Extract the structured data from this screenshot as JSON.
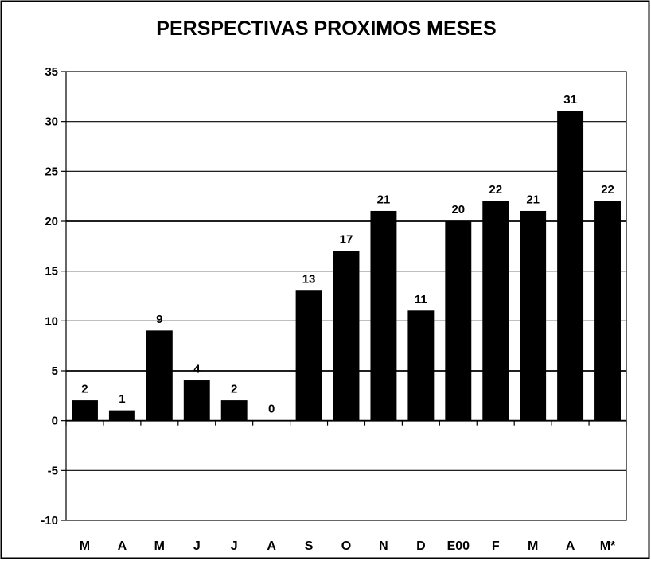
{
  "chart_data": {
    "type": "bar",
    "title": "PERSPECTIVAS PROXIMOS MESES",
    "xlabel": "",
    "ylabel": "",
    "categories": [
      "M",
      "A",
      "M",
      "J",
      "J",
      "A",
      "S",
      "O",
      "N",
      "D",
      "E00",
      "F",
      "M",
      "A",
      "M*"
    ],
    "values": [
      2,
      1,
      9,
      4,
      2,
      0,
      13,
      17,
      21,
      11,
      20,
      22,
      21,
      31,
      22
    ],
    "data_labels": [
      "2",
      "1",
      "9",
      "4",
      "2",
      "0",
      "13",
      "17",
      "21",
      "11",
      "20",
      "22",
      "21",
      "31",
      "22"
    ],
    "ylim": [
      -10,
      35
    ],
    "yticks": [
      35,
      30,
      25,
      20,
      15,
      10,
      5,
      0,
      -5,
      -10
    ],
    "grid": true,
    "legend": "none",
    "bar_color": "#000000",
    "background": "#ffffff"
  }
}
